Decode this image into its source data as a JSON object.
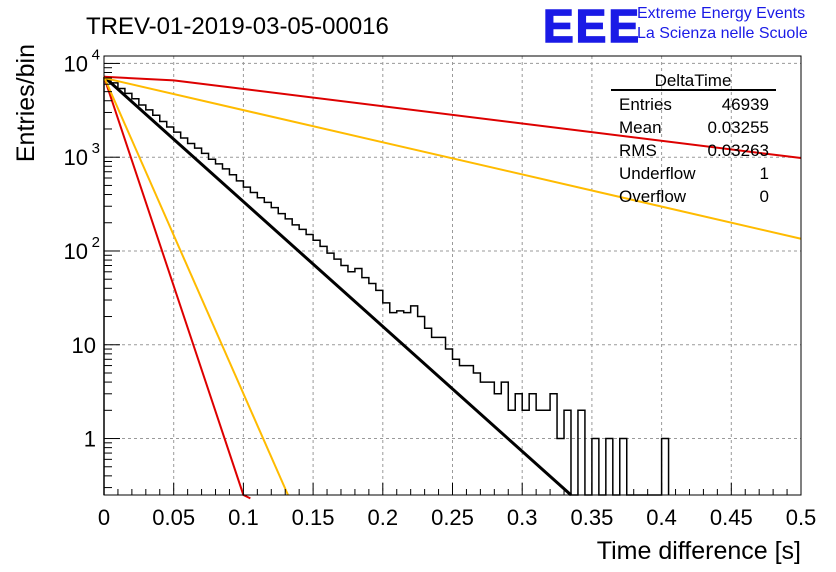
{
  "header": {
    "run_title": "TREV-01-2019-03-05-00016",
    "logo_text": "EEE",
    "logo_line1": "Extreme Energy Events",
    "logo_line2": "La Scienza nelle Scuole",
    "logo_color": "#1a1ae6"
  },
  "stats_box": {
    "title": "DeltaTime",
    "rows": [
      {
        "label": "Entries",
        "value": "46939"
      },
      {
        "label": "Mean",
        "value": "0.03255"
      },
      {
        "label": "RMS",
        "value": "0.03263"
      },
      {
        "label": "Underflow",
        "value": "1"
      },
      {
        "label": "Overflow",
        "value": "0"
      }
    ]
  },
  "chart_data": {
    "type": "line",
    "title": "TREV-01-2019-03-05-00016",
    "xlabel": "Time difference [s]",
    "ylabel": "Entries/bin",
    "xlim": [
      0,
      0.5
    ],
    "ylim": [
      0.25,
      12000
    ],
    "log_y": true,
    "grid": true,
    "x_ticks": [
      "0",
      "0.05",
      "0.1",
      "0.15",
      "0.2",
      "0.25",
      "0.3",
      "0.35",
      "0.4",
      "0.45",
      "0.5"
    ],
    "y_ticks": [
      {
        "value": 1,
        "label": "1"
      },
      {
        "value": 10,
        "label": "10"
      },
      {
        "value": 100,
        "label": "10",
        "exp": "2"
      },
      {
        "value": 1000,
        "label": "10",
        "exp": "3"
      },
      {
        "value": 10000,
        "label": "10",
        "exp": "4"
      }
    ],
    "histogram": {
      "bin_width": 0.005,
      "color": "#000000",
      "counts": [
        7000,
        6200,
        5400,
        4800,
        4200,
        3600,
        3200,
        2800,
        2400,
        2100,
        1850,
        1600,
        1400,
        1250,
        1100,
        950,
        850,
        750,
        650,
        560,
        480,
        420,
        370,
        330,
        290,
        250,
        220,
        190,
        170,
        150,
        130,
        112,
        95,
        82,
        70,
        60,
        65,
        52,
        45,
        38,
        28,
        22,
        23,
        22,
        26,
        20,
        15,
        12,
        12,
        9,
        7,
        6,
        6,
        5,
        4,
        4,
        3,
        4,
        2,
        3,
        2,
        3,
        2,
        2,
        3,
        1,
        2,
        0,
        2,
        0,
        1,
        0,
        1,
        0,
        1,
        0,
        0,
        0,
        0,
        0,
        1
      ]
    },
    "series": [
      {
        "color": "#000000",
        "width": 3,
        "x": [
          0,
          0.335
        ],
        "y": [
          7200,
          0.25
        ]
      },
      {
        "color": "#dd0000",
        "width": 2,
        "x": [
          0,
          0.1,
          0.105
        ],
        "y": [
          7200,
          0.25,
          0.23
        ]
      },
      {
        "color": "#ffbb00",
        "width": 2,
        "x": [
          0,
          0.132
        ],
        "y": [
          7200,
          0.25
        ]
      },
      {
        "color": "#dd0000",
        "width": 2,
        "x": [
          0,
          0.05,
          0.5
        ],
        "y": [
          7200,
          6600,
          980
        ]
      },
      {
        "color": "#ffbb00",
        "width": 2,
        "x": [
          0,
          0.5
        ],
        "y": [
          7000,
          135
        ]
      }
    ]
  }
}
